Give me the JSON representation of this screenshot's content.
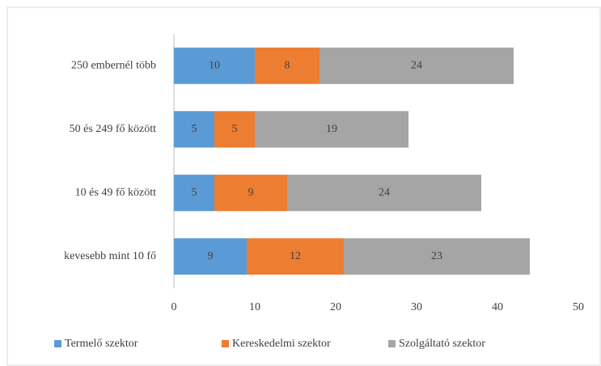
{
  "chart_data": {
    "type": "stacked-bar-horizontal",
    "categories": [
      "250 embernél több",
      "50 és 249 fő között",
      "10 és 49 fő között",
      "kevesebb mint 10 fő"
    ],
    "series": [
      {
        "name": "Termelő szektor",
        "color": "#5b9bd5",
        "values": [
          10,
          5,
          5,
          9
        ]
      },
      {
        "name": "Kereskedelmi szektor",
        "color": "#ed7d31",
        "values": [
          8,
          5,
          9,
          12
        ]
      },
      {
        "name": "Szolgáltató szektor",
        "color": "#a5a5a5",
        "values": [
          24,
          19,
          24,
          23
        ]
      }
    ],
    "xlim": [
      0,
      50
    ],
    "xticks": [
      0,
      10,
      20,
      30,
      40,
      50
    ],
    "grid": false,
    "legend": "bottom"
  }
}
